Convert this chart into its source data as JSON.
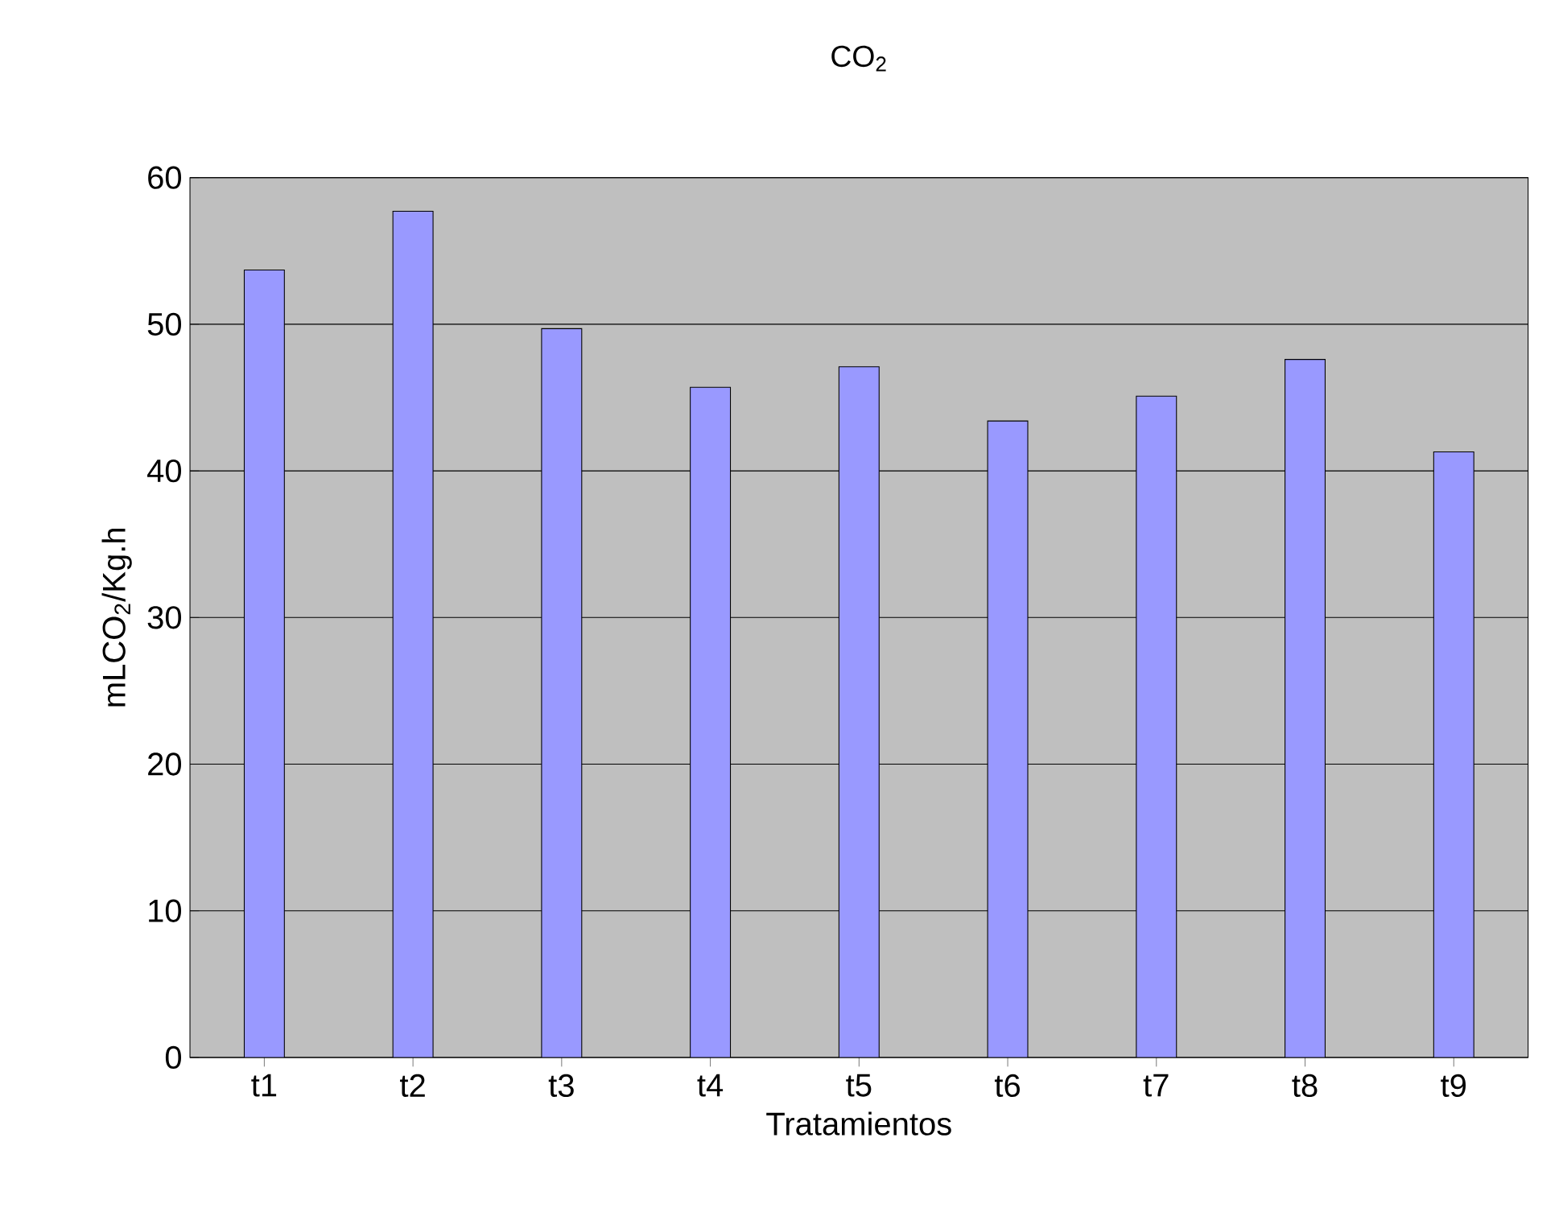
{
  "chart_data": {
    "type": "bar",
    "title": "CO$_{2}$",
    "xlabel": "Tratamientos",
    "ylabel": "mLCO$_{2}$/Kg.h",
    "categories": [
      "t1",
      "t2",
      "t3",
      "t4",
      "t5",
      "t6",
      "t7",
      "t8",
      "t9"
    ],
    "values": [
      53.7,
      57.7,
      49.7,
      45.7,
      47.1,
      43.4,
      45.1,
      47.6,
      41.3
    ],
    "color": "#9999ff",
    "ylim": [
      0,
      60
    ],
    "yticks": [
      0,
      10,
      20,
      30,
      40,
      50,
      60
    ],
    "grid": "y"
  }
}
